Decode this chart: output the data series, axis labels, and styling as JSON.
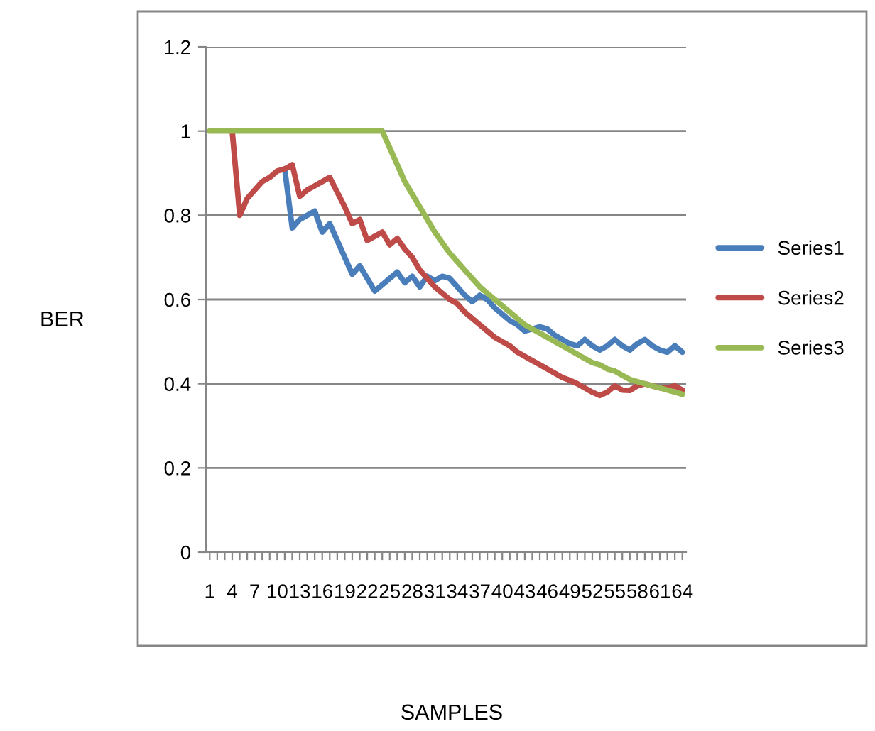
{
  "chart_data": {
    "type": "line",
    "xlabel": "SAMPLES",
    "ylabel": "BER",
    "categories": [
      "1",
      null,
      null,
      "4",
      null,
      null,
      "7",
      null,
      null,
      "10",
      null,
      null,
      "13",
      null,
      null,
      "16",
      null,
      null,
      "19",
      null,
      null,
      "22",
      null,
      null,
      "25",
      null,
      null,
      "28",
      null,
      null,
      "31",
      null,
      null,
      "34",
      null,
      null,
      "37",
      null,
      null,
      "40",
      null,
      null,
      "43",
      null,
      null,
      "46",
      null,
      null,
      "49",
      null,
      null,
      "52",
      null,
      null,
      "55",
      null,
      null,
      "58",
      null,
      null,
      "61",
      null,
      null,
      "64"
    ],
    "series": [
      {
        "name": "Series1",
        "color": "#4a7ebb",
        "values": [
          null,
          null,
          null,
          null,
          null,
          null,
          null,
          null,
          null,
          null,
          0.91,
          0.77,
          0.79,
          0.8,
          0.81,
          0.76,
          0.78,
          0.74,
          0.7,
          0.66,
          0.68,
          0.65,
          0.62,
          0.635,
          0.65,
          0.665,
          0.64,
          0.655,
          0.63,
          0.655,
          0.645,
          0.655,
          0.65,
          0.63,
          0.61,
          0.595,
          0.61,
          0.6,
          0.58,
          0.565,
          0.55,
          0.54,
          0.525,
          0.53,
          0.535,
          0.53,
          0.515,
          0.505,
          0.495,
          0.49,
          0.505,
          0.49,
          0.48,
          0.49,
          0.505,
          0.49,
          0.48,
          0.495,
          0.505,
          0.49,
          0.48,
          0.475,
          0.49,
          0.475
        ]
      },
      {
        "name": "Series2",
        "color": "#be4b48",
        "values": [
          null,
          null,
          null,
          1,
          0.8,
          0.84,
          0.86,
          0.88,
          0.89,
          0.905,
          0.91,
          0.92,
          0.845,
          0.86,
          0.87,
          0.88,
          0.89,
          0.855,
          0.82,
          0.78,
          0.79,
          0.74,
          0.75,
          0.76,
          0.73,
          0.745,
          0.72,
          0.7,
          0.67,
          0.65,
          0.63,
          0.615,
          0.6,
          0.59,
          0.57,
          0.555,
          0.54,
          0.525,
          0.51,
          0.5,
          0.49,
          0.475,
          0.465,
          0.455,
          0.445,
          0.435,
          0.425,
          0.415,
          0.408,
          0.4,
          0.39,
          0.38,
          0.372,
          0.38,
          0.395,
          0.385,
          0.384,
          0.395,
          0.4,
          0.395,
          0.39,
          0.39,
          0.395,
          0.385
        ]
      },
      {
        "name": "Series3",
        "color": "#98b954",
        "values": [
          1,
          1,
          1,
          1,
          1,
          1,
          1,
          1,
          1,
          1,
          1,
          1,
          1,
          1,
          1,
          1,
          1,
          1,
          1,
          1,
          1,
          1,
          1,
          1,
          0.96,
          0.92,
          0.88,
          0.85,
          0.82,
          0.79,
          0.76,
          0.735,
          0.71,
          0.69,
          0.67,
          0.65,
          0.63,
          0.615,
          0.6,
          0.585,
          0.57,
          0.555,
          0.54,
          0.53,
          0.52,
          0.51,
          0.5,
          0.49,
          0.48,
          0.47,
          0.46,
          0.45,
          0.445,
          0.435,
          0.43,
          0.42,
          0.41,
          0.405,
          0.4,
          0.395,
          0.39,
          0.385,
          0.38,
          0.375
        ]
      }
    ],
    "ylim": [
      0,
      1.2
    ],
    "yticks": [
      0,
      0.2,
      0.4,
      0.6,
      0.8,
      1,
      1.2
    ],
    "grid": "y",
    "legend": "right",
    "marker": "none",
    "line_style": "solid"
  }
}
